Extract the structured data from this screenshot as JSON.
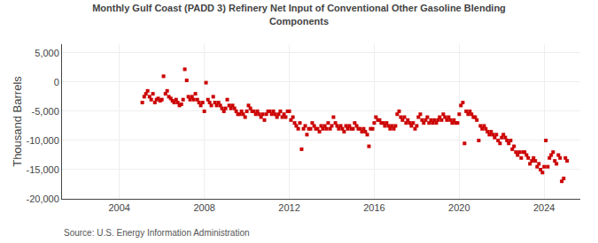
{
  "chart_data": {
    "type": "scatter",
    "title": "Monthly Gulf Coast (PADD 3) Refinery Net Input of Conventional Other Gasoline Blending\nComponents",
    "ylabel": "Thousand Barrels",
    "annotations": [
      "Source: U.S. Energy Information Administration"
    ],
    "color": "#cc0000",
    "marker": "square",
    "grid": true,
    "xlim": [
      2001.3,
      2025.7
    ],
    "xticks": [
      2004,
      2008,
      2012,
      2016,
      2020,
      2024
    ],
    "ylim": [
      -20000,
      6500
    ],
    "yticks": [
      {
        "value": -20000,
        "label": "-20,000"
      },
      {
        "value": -15000,
        "label": "-15,000"
      },
      {
        "value": -10000,
        "label": "-10,000"
      },
      {
        "value": -5000,
        "label": "-5,000"
      },
      0,
      {
        "value": 5000,
        "label": "5,000"
      }
    ],
    "x": [
      2005.08,
      2005.17,
      2005.25,
      2005.33,
      2005.42,
      2005.5,
      2005.58,
      2005.67,
      2005.75,
      2005.83,
      2005.92,
      2006.0,
      2006.08,
      2006.17,
      2006.25,
      2006.33,
      2006.42,
      2006.5,
      2006.58,
      2006.67,
      2006.75,
      2006.83,
      2006.92,
      2007.0,
      2007.08,
      2007.17,
      2007.25,
      2007.33,
      2007.42,
      2007.5,
      2007.58,
      2007.67,
      2007.75,
      2007.83,
      2007.92,
      2008.0,
      2008.08,
      2008.17,
      2008.25,
      2008.33,
      2008.42,
      2008.5,
      2008.58,
      2008.67,
      2008.75,
      2008.83,
      2008.92,
      2009.0,
      2009.08,
      2009.17,
      2009.25,
      2009.33,
      2009.42,
      2009.5,
      2009.58,
      2009.67,
      2009.75,
      2009.83,
      2009.92,
      2010.0,
      2010.08,
      2010.17,
      2010.25,
      2010.33,
      2010.42,
      2010.5,
      2010.58,
      2010.67,
      2010.75,
      2010.83,
      2010.92,
      2011.0,
      2011.08,
      2011.17,
      2011.25,
      2011.33,
      2011.42,
      2011.5,
      2011.58,
      2011.67,
      2011.75,
      2011.83,
      2011.92,
      2012.0,
      2012.08,
      2012.17,
      2012.25,
      2012.33,
      2012.42,
      2012.5,
      2012.58,
      2012.67,
      2012.75,
      2012.83,
      2012.92,
      2013.0,
      2013.08,
      2013.17,
      2013.25,
      2013.33,
      2013.42,
      2013.5,
      2013.58,
      2013.67,
      2013.75,
      2013.83,
      2013.92,
      2014.0,
      2014.08,
      2014.17,
      2014.25,
      2014.33,
      2014.42,
      2014.5,
      2014.58,
      2014.67,
      2014.75,
      2014.83,
      2014.92,
      2015.0,
      2015.08,
      2015.17,
      2015.25,
      2015.33,
      2015.42,
      2015.5,
      2015.58,
      2015.67,
      2015.75,
      2015.83,
      2015.92,
      2016.0,
      2016.08,
      2016.17,
      2016.25,
      2016.33,
      2016.42,
      2016.5,
      2016.58,
      2016.67,
      2016.75,
      2016.83,
      2016.92,
      2017.0,
      2017.08,
      2017.17,
      2017.25,
      2017.33,
      2017.42,
      2017.5,
      2017.58,
      2017.67,
      2017.75,
      2017.83,
      2017.92,
      2018.0,
      2018.08,
      2018.17,
      2018.25,
      2018.33,
      2018.42,
      2018.5,
      2018.58,
      2018.67,
      2018.75,
      2018.83,
      2018.92,
      2019.0,
      2019.08,
      2019.17,
      2019.25,
      2019.33,
      2019.42,
      2019.5,
      2019.58,
      2019.67,
      2019.75,
      2019.83,
      2019.92,
      2020.0,
      2020.08,
      2020.17,
      2020.25,
      2020.33,
      2020.42,
      2020.5,
      2020.58,
      2020.67,
      2020.75,
      2020.83,
      2020.92,
      2021.0,
      2021.08,
      2021.17,
      2021.25,
      2021.33,
      2021.42,
      2021.5,
      2021.58,
      2021.67,
      2021.75,
      2021.83,
      2021.92,
      2022.0,
      2022.08,
      2022.17,
      2022.25,
      2022.33,
      2022.42,
      2022.5,
      2022.58,
      2022.67,
      2022.75,
      2022.83,
      2022.92,
      2023.0,
      2023.08,
      2023.17,
      2023.25,
      2023.33,
      2023.42,
      2023.5,
      2023.58,
      2023.67,
      2023.75,
      2023.83,
      2023.92,
      2024.0,
      2024.08,
      2024.17,
      2024.25,
      2024.33,
      2024.42,
      2024.5,
      2024.58,
      2024.67,
      2024.75,
      2024.83,
      2024.92,
      2025.0,
      2025.08
    ],
    "values": [
      -3500,
      -2500,
      -2000,
      -1500,
      -2500,
      -3000,
      -2000,
      -3500,
      -3000,
      -2800,
      -3200,
      -3000,
      1000,
      -2000,
      -1500,
      -2500,
      -2800,
      -3200,
      -3500,
      -3000,
      -3500,
      -4000,
      -3800,
      -3000,
      2200,
      300,
      -2500,
      -3000,
      -2500,
      -3000,
      -2000,
      -3000,
      -3500,
      -4000,
      -3500,
      -5000,
      -100,
      -3000,
      -3500,
      -4000,
      -2500,
      -3500,
      -4000,
      -3500,
      -4000,
      -4500,
      -5000,
      -4500,
      -3000,
      -4000,
      -4500,
      -4000,
      -4500,
      -5000,
      -5500,
      -5500,
      -5000,
      -5500,
      -6000,
      -5000,
      -4000,
      -4500,
      -5000,
      -5000,
      -5500,
      -5000,
      -5500,
      -6000,
      -5500,
      -6500,
      -5500,
      -5000,
      -5000,
      -5500,
      -5000,
      -5500,
      -6000,
      -5500,
      -5000,
      -6000,
      -5500,
      -6000,
      -5000,
      -5000,
      -6500,
      -6000,
      -7000,
      -7500,
      -8000,
      -7000,
      -11500,
      -8000,
      -7500,
      -9000,
      -8000,
      -8000,
      -7000,
      -7500,
      -8000,
      -8000,
      -8500,
      -7500,
      -8000,
      -7500,
      -8000,
      -7000,
      -8000,
      -7500,
      -6000,
      -7000,
      -7500,
      -8000,
      -7500,
      -8000,
      -8500,
      -7500,
      -8000,
      -7500,
      -8000,
      -8000,
      -7000,
      -7500,
      -8000,
      -8000,
      -8500,
      -8000,
      -8500,
      -9000,
      -11000,
      -8000,
      -8000,
      -7000,
      -6000,
      -6500,
      -6500,
      -7000,
      -7000,
      -7500,
      -7000,
      -7500,
      -8000,
      -7500,
      -8000,
      -7500,
      -5500,
      -5000,
      -6000,
      -6500,
      -6000,
      -7000,
      -6500,
      -7000,
      -7500,
      -7000,
      -8000,
      -7500,
      -6000,
      -5500,
      -6500,
      -7000,
      -6500,
      -6000,
      -7000,
      -6500,
      -7000,
      -6500,
      -7000,
      -6500,
      -6000,
      -6500,
      -5500,
      -6000,
      -6500,
      -6000,
      -6500,
      -7000,
      -6500,
      -7000,
      -7000,
      -5500,
      -4000,
      -3500,
      -10500,
      -5000,
      -5500,
      -5000,
      -5500,
      -6000,
      -6000,
      -6500,
      -10000,
      -7500,
      -8000,
      -7500,
      -8000,
      -8500,
      -9000,
      -8500,
      -9000,
      -9500,
      -9000,
      -10000,
      -10500,
      -9500,
      -9000,
      -9500,
      -10000,
      -10500,
      -10000,
      -11500,
      -11000,
      -12000,
      -12500,
      -12000,
      -13000,
      -12000,
      -12000,
      -12500,
      -13000,
      -14000,
      -13500,
      -13000,
      -13500,
      -14500,
      -14000,
      -15000,
      -15500,
      -14500,
      -10000,
      -14500,
      -13000,
      -12500,
      -12000,
      -13500,
      -14000,
      -12500,
      -13000,
      -17000,
      -16500,
      -13000,
      -13500
    ]
  }
}
